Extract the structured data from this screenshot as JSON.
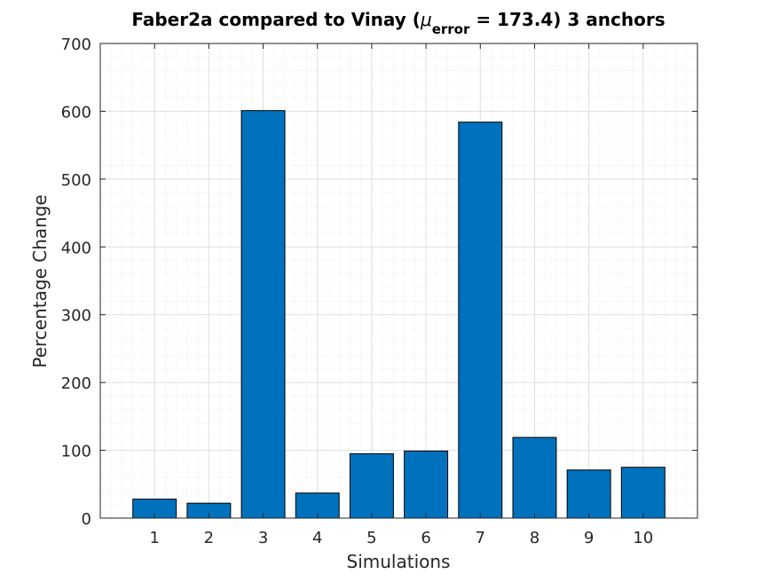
{
  "chart_data": {
    "type": "bar",
    "title": {
      "prefix": "Faber2a compared to Vinay (",
      "mu": "μ",
      "subscript": "error",
      "suffix": " = 173.4) 3 anchors"
    },
    "xlabel": "Simulations",
    "ylabel": "Percentage Change",
    "categories": [
      "1",
      "2",
      "3",
      "4",
      "5",
      "6",
      "7",
      "8",
      "9",
      "10"
    ],
    "values": [
      28,
      22,
      601,
      37,
      95,
      99,
      584,
      119,
      71,
      75
    ],
    "xlim": [
      0,
      11
    ],
    "ylim": [
      0,
      700
    ],
    "yticks": [
      0,
      100,
      200,
      300,
      400,
      500,
      600,
      700
    ],
    "grid": true,
    "minor_grid": true,
    "bar_color": "#0072BD",
    "bar_edge_color": "#000000",
    "axis_color": "#262626",
    "grid_color": "#dfdfdf"
  }
}
